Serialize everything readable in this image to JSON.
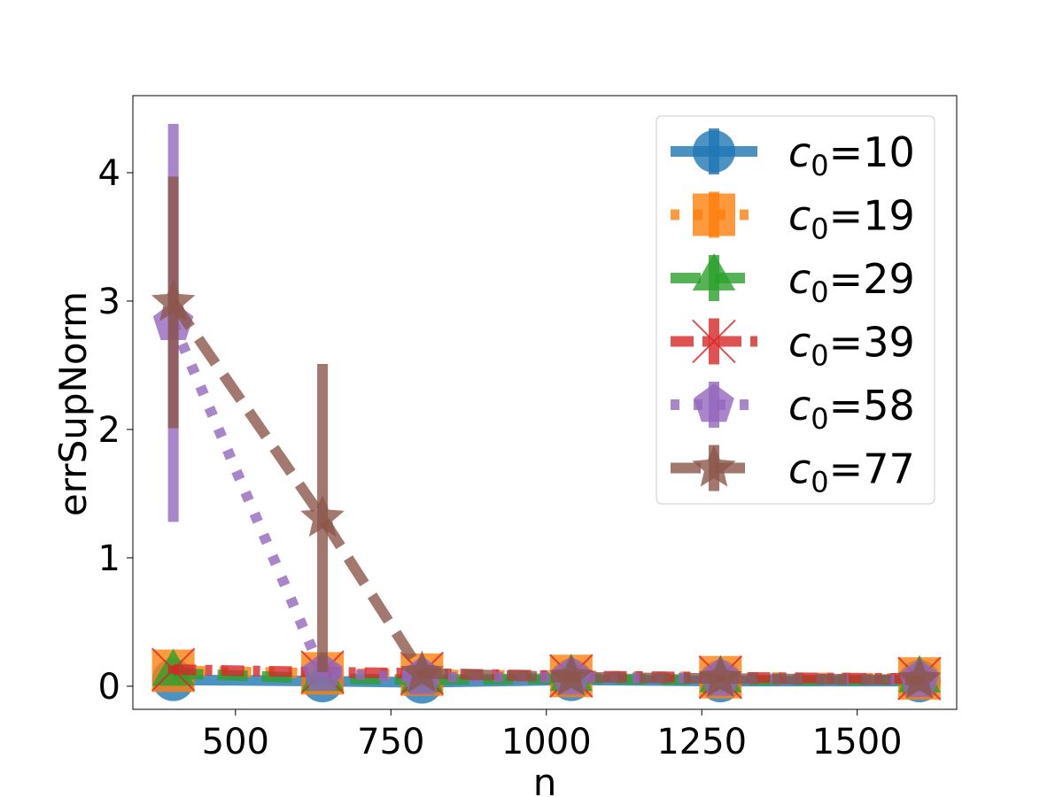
{
  "chart_data": {
    "type": "line",
    "title": "",
    "xlabel": "n",
    "ylabel": "errSupNorm",
    "xlim": [
      335,
      1660
    ],
    "ylim": [
      -0.18,
      4.6
    ],
    "xticks": [
      500,
      750,
      1000,
      1250,
      1500
    ],
    "yticks": [
      0,
      1,
      2,
      3,
      4
    ],
    "grid": false,
    "legend_position": "top-right",
    "x": [
      400,
      640,
      800,
      1040,
      1280,
      1600
    ],
    "series": [
      {
        "name": "c0=10",
        "label_base": "c",
        "label_sub": "0",
        "label_rest": "=10",
        "color": "#1f77b4",
        "dash": "solid",
        "marker": "circle",
        "values": [
          0.05,
          0.04,
          0.03,
          0.05,
          0.04,
          0.04
        ],
        "errors": [
          0.02,
          0.02,
          0.02,
          0.02,
          0.02,
          0.02
        ]
      },
      {
        "name": "c0=19",
        "label_base": "c",
        "label_sub": "0",
        "label_rest": "=19",
        "color": "#ff7f0e",
        "dash": "dotted",
        "marker": "square",
        "values": [
          0.12,
          0.1,
          0.09,
          0.08,
          0.07,
          0.06
        ],
        "errors": [
          0.03,
          0.03,
          0.03,
          0.03,
          0.03,
          0.03
        ]
      },
      {
        "name": "c0=29",
        "label_base": "c",
        "label_sub": "0",
        "label_rest": "=29",
        "color": "#2ca02c",
        "dash": "dashed",
        "marker": "triangle",
        "values": [
          0.1,
          0.06,
          0.05,
          0.06,
          0.05,
          0.05
        ],
        "errors": [
          0.02,
          0.02,
          0.02,
          0.02,
          0.02,
          0.02
        ]
      },
      {
        "name": "c0=39",
        "label_base": "c",
        "label_sub": "0",
        "label_rest": "=39",
        "color": "#d62728",
        "dash": "dashdot",
        "marker": "x",
        "values": [
          0.13,
          0.11,
          0.1,
          0.08,
          0.07,
          0.06
        ],
        "errors": [
          0.03,
          0.03,
          0.03,
          0.03,
          0.03,
          0.03
        ]
      },
      {
        "name": "c0=58",
        "label_base": "c",
        "label_sub": "0",
        "label_rest": "=58",
        "color": "#9467bd",
        "dash": "dotted",
        "marker": "pentagon",
        "values": [
          2.83,
          0.1,
          0.07,
          0.07,
          0.06,
          0.05
        ],
        "errors": [
          1.55,
          0.03,
          0.03,
          0.03,
          0.03,
          0.03
        ]
      },
      {
        "name": "c0=77",
        "label_base": "c",
        "label_sub": "0",
        "label_rest": "=77",
        "color": "#8c564b",
        "dash": "dashed",
        "marker": "star",
        "values": [
          2.99,
          1.31,
          0.1,
          0.07,
          0.06,
          0.05
        ],
        "errors": [
          0.98,
          1.2,
          0.03,
          0.03,
          0.03,
          0.03
        ]
      }
    ]
  }
}
